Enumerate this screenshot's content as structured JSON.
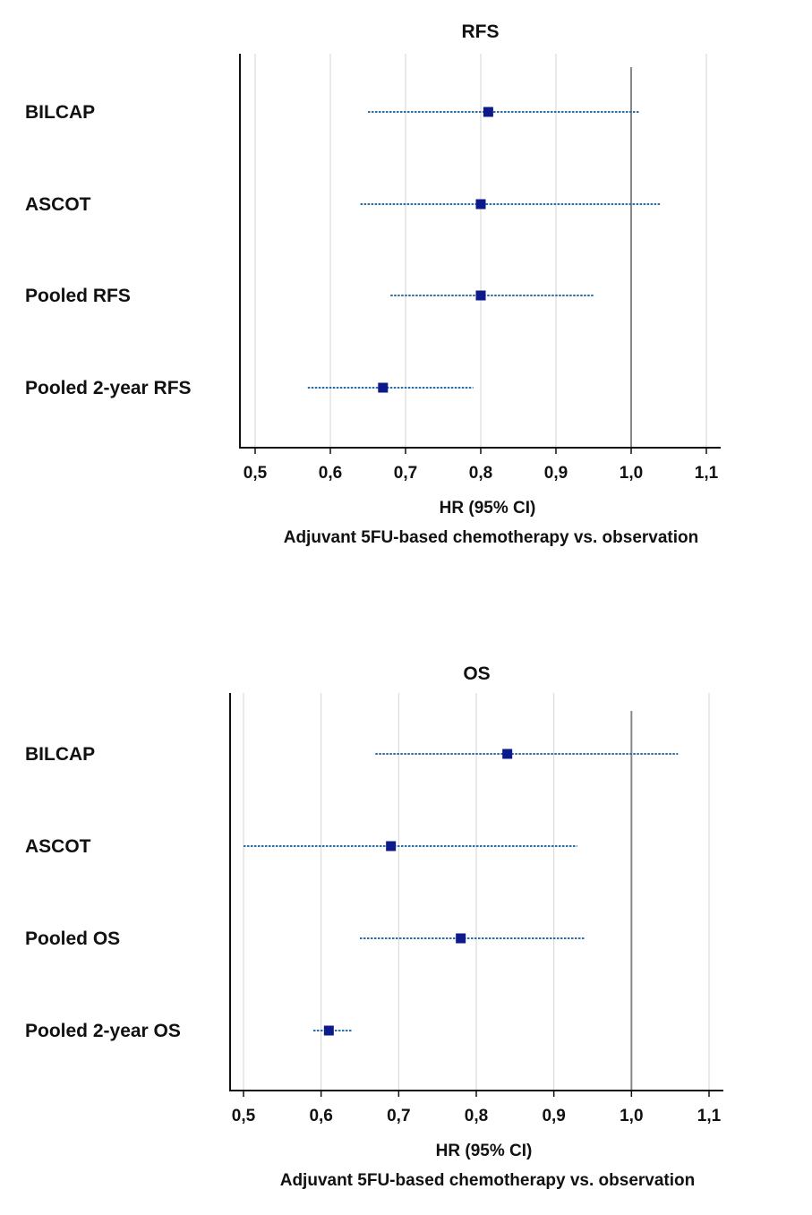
{
  "chart_data": [
    {
      "type": "scatter",
      "title": "RFS",
      "xlabel": "HR (95% CI)",
      "subtitle": "Adjuvant 5FU-based chemotherapy vs. observation",
      "xlim": [
        0.48,
        1.12
      ],
      "xticks": [
        0.5,
        0.6,
        0.7,
        0.8,
        0.9,
        1.0,
        1.1
      ],
      "xtick_labels": [
        "0,5",
        "0,6",
        "0,7",
        "0,8",
        "0,9",
        "1,0",
        "1,1"
      ],
      "reference_line": 1.0,
      "grid": true,
      "series": [
        {
          "label": "BILCAP",
          "hr": 0.81,
          "ci_low": 0.65,
          "ci_high": 1.01
        },
        {
          "label": "ASCOT",
          "hr": 0.8,
          "ci_low": 0.64,
          "ci_high": 1.04
        },
        {
          "label": "Pooled RFS",
          "hr": 0.8,
          "ci_low": 0.68,
          "ci_high": 0.95
        },
        {
          "label": "Pooled 2-year RFS",
          "hr": 0.67,
          "ci_low": 0.57,
          "ci_high": 0.79
        }
      ]
    },
    {
      "type": "scatter",
      "title": "OS",
      "xlabel": "HR (95% CI)",
      "subtitle": "Adjuvant 5FU-based chemotherapy vs. observation",
      "xlim": [
        0.48,
        1.12
      ],
      "xticks": [
        0.5,
        0.6,
        0.7,
        0.8,
        0.9,
        1.0,
        1.1
      ],
      "xtick_labels": [
        "0,5",
        "0,6",
        "0,7",
        "0,8",
        "0,9",
        "1,0",
        "1,1"
      ],
      "reference_line": 1.0,
      "grid": true,
      "series": [
        {
          "label": "BILCAP",
          "hr": 0.84,
          "ci_low": 0.67,
          "ci_high": 1.06
        },
        {
          "label": "ASCOT",
          "hr": 0.69,
          "ci_low": 0.5,
          "ci_high": 0.93
        },
        {
          "label": "Pooled OS",
          "hr": 0.78,
          "ci_low": 0.65,
          "ci_high": 0.94
        },
        {
          "label": "Pooled 2-year OS",
          "hr": 0.61,
          "ci_low": 0.59,
          "ci_high": 0.64
        }
      ]
    }
  ],
  "colors": {
    "point": "#0d1a8c",
    "ci_line": "#2a6fa8",
    "reference": "#888888",
    "grid": "#d6d6d6",
    "axis": "#111111"
  }
}
